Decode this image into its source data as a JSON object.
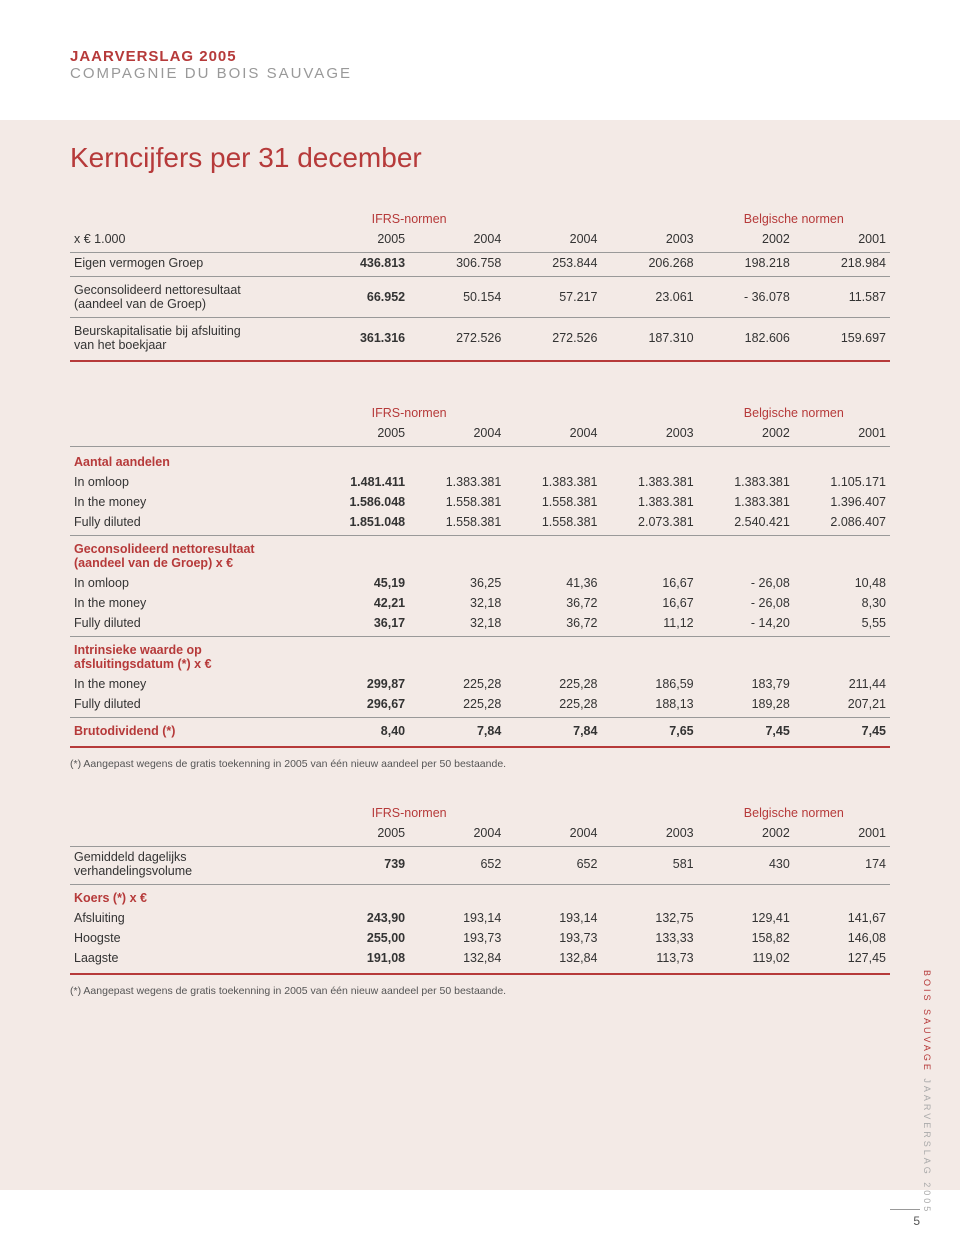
{
  "colors": {
    "accent": "#b63a3a",
    "panel": "#f3eae6",
    "rule": "#999999",
    "text": "#333333",
    "muted": "#aaaaaa"
  },
  "header": {
    "line1": "JAARVERSLAG 2005",
    "line2": "COMPAGNIE DU BOIS SAUVAGE"
  },
  "page_title": "Kerncijfers per 31 december",
  "col_headers": {
    "group_ifrs": "IFRS-normen",
    "group_be": "Belgische normen",
    "unit": "x € 1.000",
    "y2005": "2005",
    "y2004a": "2004",
    "y2004b": "2004",
    "y2003": "2003",
    "y2002": "2002",
    "y2001": "2001"
  },
  "table1": {
    "rows": [
      {
        "label": "Eigen vermogen Groep",
        "v": [
          "436.813",
          "306.758",
          "253.844",
          "206.268",
          "198.218",
          "218.984"
        ]
      },
      {
        "label": "Geconsolideerd nettoresultaat",
        "label2": "(aandeel van de Groep)",
        "v": [
          "66.952",
          "50.154",
          "57.217",
          "23.061",
          "- 36.078",
          "11.587"
        ]
      },
      {
        "label": "Beurskapitalisatie bij afsluiting",
        "label2": "van het boekjaar",
        "v": [
          "361.316",
          "272.526",
          "272.526",
          "187.310",
          "182.606",
          "159.697"
        ]
      }
    ]
  },
  "table2": {
    "sections": [
      {
        "title": "Aantal aandelen",
        "rows": [
          {
            "label": "In omloop",
            "v": [
              "1.481.411",
              "1.383.381",
              "1.383.381",
              "1.383.381",
              "1.383.381",
              "1.105.171"
            ]
          },
          {
            "label": "In the money",
            "v": [
              "1.586.048",
              "1.558.381",
              "1.558.381",
              "1.383.381",
              "1.383.381",
              "1.396.407"
            ]
          },
          {
            "label": "Fully diluted",
            "v": [
              "1.851.048",
              "1.558.381",
              "1.558.381",
              "2.073.381",
              "2.540.421",
              "2.086.407"
            ]
          }
        ]
      },
      {
        "title": "Geconsolideerd nettoresultaat",
        "title2": "(aandeel van de Groep) x €",
        "rows": [
          {
            "label": "In omloop",
            "v": [
              "45,19",
              "36,25",
              "41,36",
              "16,67",
              "- 26,08",
              "10,48"
            ]
          },
          {
            "label": "In the money",
            "v": [
              "42,21",
              "32,18",
              "36,72",
              "16,67",
              "- 26,08",
              "8,30"
            ]
          },
          {
            "label": "Fully diluted",
            "v": [
              "36,17",
              "32,18",
              "36,72",
              "11,12",
              "- 14,20",
              "5,55"
            ]
          }
        ]
      },
      {
        "title": "Intrinsieke waarde op",
        "title2": "afsluitingsdatum (*) x €",
        "rows": [
          {
            "label": "In the money",
            "v": [
              "299,87",
              "225,28",
              "225,28",
              "186,59",
              "183,79",
              "211,44"
            ]
          },
          {
            "label": "Fully diluted",
            "v": [
              "296,67",
              "225,28",
              "225,28",
              "188,13",
              "189,28",
              "207,21"
            ]
          }
        ]
      },
      {
        "title_row": true,
        "label": "Brutodividend (*)",
        "v": [
          "8,40",
          "7,84",
          "7,84",
          "7,65",
          "7,45",
          "7,45"
        ]
      }
    ]
  },
  "footnote": "(*) Aangepast wegens de gratis toekenning in 2005 van één nieuw aandeel per 50 bestaande.",
  "table3": {
    "sections": [
      {
        "rows": [
          {
            "label": "Gemiddeld dagelijks",
            "label2": "verhandelingsvolume",
            "v": [
              "739",
              "652",
              "652",
              "581",
              "430",
              "174"
            ]
          }
        ]
      },
      {
        "title": "Koers (*) x €",
        "rows": [
          {
            "label": "Afsluiting",
            "v": [
              "243,90",
              "193,14",
              "193,14",
              "132,75",
              "129,41",
              "141,67"
            ]
          },
          {
            "label": "Hoogste",
            "v": [
              "255,00",
              "193,73",
              "193,73",
              "133,33",
              "158,82",
              "146,08"
            ]
          },
          {
            "label": "Laagste",
            "v": [
              "191,08",
              "132,84",
              "132,84",
              "113,73",
              "119,02",
              "127,45"
            ]
          }
        ]
      }
    ]
  },
  "side": {
    "brand": "BOIS SAUVAGE",
    "context": " JAARVERSLAG 2005"
  },
  "page_number": "5"
}
